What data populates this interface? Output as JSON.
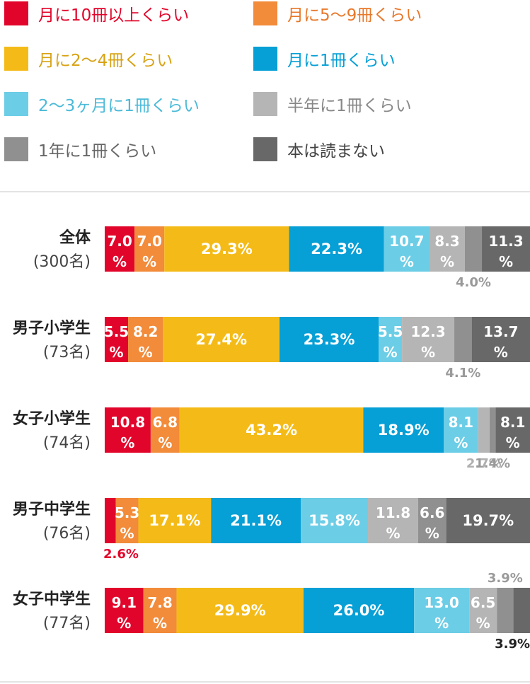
{
  "legend": [
    {
      "label": "月に10冊以上くらい",
      "color": "#e2052b",
      "text_color": "#e2052b"
    },
    {
      "label": "月に5〜9冊くらい",
      "color": "#f28b3a",
      "text_color": "#e8782a"
    },
    {
      "label": "月に2〜4冊くらい",
      "color": "#f4bb18",
      "text_color": "#d7a213"
    },
    {
      "label": "月に1冊くらい",
      "color": "#069fd6",
      "text_color": "#069fd6"
    },
    {
      "label": "2〜3ヶ月に1冊くらい",
      "color": "#6ccde6",
      "text_color": "#4bbad8"
    },
    {
      "label": "半年に1冊くらい",
      "color": "#b5b5b5",
      "text_color": "#888888"
    },
    {
      "label": "1年に1冊くらい",
      "color": "#909090",
      "text_color": "#666666"
    },
    {
      "label": "本は読まない",
      "color": "#686868",
      "text_color": "#444444"
    }
  ],
  "chart_data": {
    "type": "bar",
    "orientation": "horizontal",
    "stacked": true,
    "normalized_percent": true,
    "legend_position": "top",
    "grid": false,
    "series": [
      {
        "name": "月に10冊以上くらい",
        "color": "#e2052b"
      },
      {
        "name": "月に5〜9冊くらい",
        "color": "#f28b3a"
      },
      {
        "name": "月に2〜4冊くらい",
        "color": "#f4bb18"
      },
      {
        "name": "月に1冊くらい",
        "color": "#069fd6"
      },
      {
        "name": "2〜3ヶ月に1冊くらい",
        "color": "#6ccde6"
      },
      {
        "name": "半年に1冊くらい",
        "color": "#b5b5b5"
      },
      {
        "name": "1年に1冊くらい",
        "color": "#909090"
      },
      {
        "name": "本は読まない",
        "color": "#686868"
      }
    ],
    "rows": [
      {
        "name": "全体",
        "count": "(300名)",
        "values": [
          7.0,
          7.0,
          29.3,
          22.3,
          10.7,
          8.3,
          4.0,
          11.3
        ],
        "labels": [
          "7.0\n%",
          "7.0\n%",
          "29.3%",
          "22.3%",
          "10.7\n%",
          "8.3\n%",
          "4.0%",
          "11.3\n%"
        ]
      },
      {
        "name": "男子小学生",
        "count": "(73名)",
        "values": [
          5.5,
          8.2,
          27.4,
          23.3,
          5.5,
          12.3,
          4.1,
          13.7
        ],
        "labels": [
          "5.5\n%",
          "8.2\n%",
          "27.4%",
          "23.3%",
          "5.5\n%",
          "12.3\n%",
          "4.1%",
          "13.7\n%"
        ]
      },
      {
        "name": "女子小学生",
        "count": "(74名)",
        "values": [
          10.8,
          6.8,
          43.2,
          18.9,
          8.1,
          2.7,
          1.4,
          8.1
        ],
        "labels": [
          "10.8\n%",
          "6.8\n%",
          "43.2%",
          "18.9%",
          "8.1\n%",
          "2.7%",
          "1.4%",
          "8.1\n%"
        ]
      },
      {
        "name": "男子中学生",
        "count": "(76名)",
        "values": [
          2.6,
          5.3,
          17.1,
          21.1,
          15.8,
          11.8,
          6.6,
          19.7
        ],
        "labels": [
          "2.6%",
          "5.3\n%",
          "17.1%",
          "21.1%",
          "15.8%",
          "11.8\n%",
          "6.6\n%",
          "19.7%"
        ]
      },
      {
        "name": "女子中学生",
        "count": "(77名)",
        "values": [
          9.1,
          7.8,
          29.9,
          26.0,
          13.0,
          6.5,
          3.9,
          3.9
        ],
        "labels": [
          "9.1\n%",
          "7.8\n%",
          "29.9%",
          "26.0%",
          "13.0\n%",
          "6.5\n%",
          "3.9%",
          "3.9%"
        ]
      }
    ],
    "callouts": [
      {
        "row": 0,
        "segment": 6,
        "side": "below",
        "color": "#9a9a9a"
      },
      {
        "row": 1,
        "segment": 6,
        "side": "below",
        "color": "#9a9a9a"
      },
      {
        "row": 2,
        "segment": 5,
        "side": "below",
        "color": "#b0b0b0"
      },
      {
        "row": 2,
        "segment": 6,
        "side": "below",
        "color": "#9a9a9a"
      },
      {
        "row": 3,
        "segment": 0,
        "side": "below",
        "color": "#e2052b"
      },
      {
        "row": 4,
        "segment": 6,
        "side": "above",
        "color": "#9a9a9a"
      },
      {
        "row": 4,
        "segment": 7,
        "side": "below",
        "color": "#222222"
      }
    ]
  }
}
